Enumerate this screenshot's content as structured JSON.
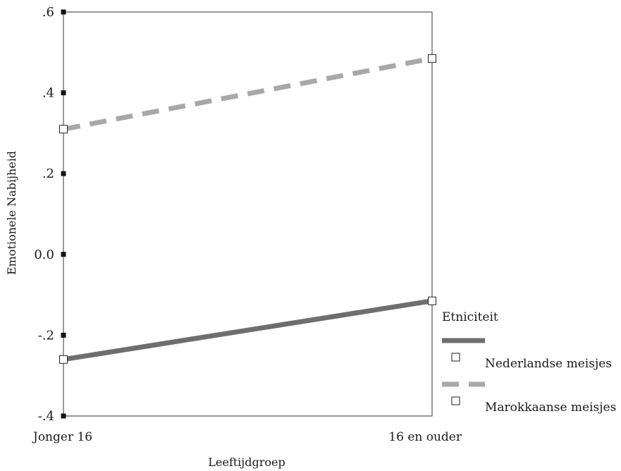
{
  "chart_data": {
    "type": "line",
    "title": "",
    "xlabel": "Leeftijdgroep",
    "ylabel": "Emotionele Nabijheid",
    "categories": [
      "Jonger 16",
      "16 en ouder"
    ],
    "ylim": [
      -0.4,
      0.6
    ],
    "yticks": [
      {
        "value": 0.6,
        "label": ".6"
      },
      {
        "value": 0.4,
        "label": ".4"
      },
      {
        "value": 0.2,
        "label": ".2"
      },
      {
        "value": 0.0,
        "label": "0.0"
      },
      {
        "value": -0.2,
        "label": "-.2"
      },
      {
        "value": -0.4,
        "label": "-.4"
      }
    ],
    "grid": false,
    "legend": {
      "title": "Etniciteit",
      "placement": "right"
    },
    "series": [
      {
        "name": "Nederlandse meisjes",
        "values": [
          -0.26,
          -0.115
        ],
        "color": "#6e6e6e",
        "dash": "solid"
      },
      {
        "name": "Marokkaanse meisjes",
        "values": [
          0.31,
          0.485
        ],
        "color": "#a8a8a8",
        "dash": "dashed"
      }
    ]
  }
}
